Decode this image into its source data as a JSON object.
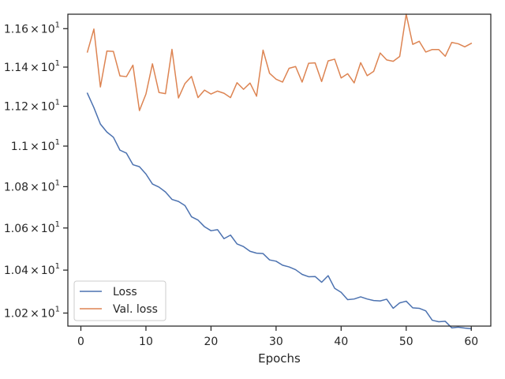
{
  "chart_data": {
    "type": "line",
    "title": "",
    "xlabel": "Epochs",
    "ylabel": "",
    "xlim": [
      -2,
      63
    ],
    "ylim": [
      10.14,
      11.676
    ],
    "y_scale": "log",
    "xticks": [
      0,
      10,
      20,
      30,
      40,
      50,
      60
    ],
    "xtick_labels": [
      "0",
      "10",
      "20",
      "30",
      "40",
      "50",
      "60"
    ],
    "yticks": [
      10.2,
      10.4,
      10.6,
      10.8,
      11.0,
      11.2,
      11.4,
      11.6
    ],
    "ytick_labels": [
      {
        "base": "1.02",
        "sep": "×",
        "pow": "10",
        "exp": "1"
      },
      {
        "base": "1.04",
        "sep": "×",
        "pow": "10",
        "exp": "1"
      },
      {
        "base": "1.06",
        "sep": "×",
        "pow": "10",
        "exp": "1"
      },
      {
        "base": "1.08",
        "sep": "×",
        "pow": "10",
        "exp": "1"
      },
      {
        "base": "1.1",
        "sep": "×",
        "pow": "10",
        "exp": "1"
      },
      {
        "base": "1.12",
        "sep": "×",
        "pow": "10",
        "exp": "1"
      },
      {
        "base": "1.14",
        "sep": "×",
        "pow": "10",
        "exp": "1"
      },
      {
        "base": "1.16",
        "sep": "×",
        "pow": "10",
        "exp": "1"
      }
    ],
    "grid": false,
    "legend_position": "lower-left",
    "x": [
      1,
      2,
      3,
      4,
      5,
      6,
      7,
      8,
      9,
      10,
      11,
      12,
      13,
      14,
      15,
      16,
      17,
      18,
      19,
      20,
      21,
      22,
      23,
      24,
      25,
      26,
      27,
      28,
      29,
      30,
      31,
      32,
      33,
      34,
      35,
      36,
      37,
      38,
      39,
      40,
      41,
      42,
      43,
      44,
      45,
      46,
      47,
      48,
      49,
      50,
      51,
      52,
      53,
      54,
      55,
      56,
      57,
      58,
      59,
      60
    ],
    "series": [
      {
        "name": "Loss",
        "color": "#4c72b0",
        "values": [
          11.266,
          11.193,
          11.11,
          11.07,
          11.044,
          10.98,
          10.965,
          10.908,
          10.898,
          10.862,
          10.813,
          10.798,
          10.774,
          10.738,
          10.728,
          10.708,
          10.654,
          10.638,
          10.606,
          10.587,
          10.592,
          10.549,
          10.566,
          10.524,
          10.511,
          10.489,
          10.48,
          10.478,
          10.448,
          10.442,
          10.423,
          10.415,
          10.402,
          10.38,
          10.369,
          10.37,
          10.343,
          10.374,
          10.315,
          10.296,
          10.262,
          10.265,
          10.275,
          10.265,
          10.258,
          10.256,
          10.264,
          10.222,
          10.247,
          10.255,
          10.224,
          10.222,
          10.21,
          10.167,
          10.16,
          10.162,
          10.132,
          10.135,
          10.131,
          10.128
        ]
      },
      {
        "name": "Val. loss",
        "color": "#dd8452",
        "values": [
          11.478,
          11.598,
          11.298,
          11.483,
          11.481,
          11.355,
          11.351,
          11.41,
          11.178,
          11.262,
          11.417,
          11.27,
          11.264,
          11.492,
          11.242,
          11.316,
          11.352,
          11.244,
          11.282,
          11.262,
          11.277,
          11.266,
          11.244,
          11.32,
          11.286,
          11.318,
          11.251,
          11.488,
          11.368,
          11.338,
          11.323,
          11.394,
          11.403,
          11.323,
          11.42,
          11.422,
          11.326,
          11.432,
          11.441,
          11.344,
          11.366,
          11.319,
          11.423,
          11.356,
          11.378,
          11.473,
          11.437,
          11.43,
          11.455,
          11.676,
          11.518,
          11.534,
          11.478,
          11.491,
          11.491,
          11.456,
          11.528,
          11.521,
          11.505,
          11.523
        ]
      }
    ]
  }
}
